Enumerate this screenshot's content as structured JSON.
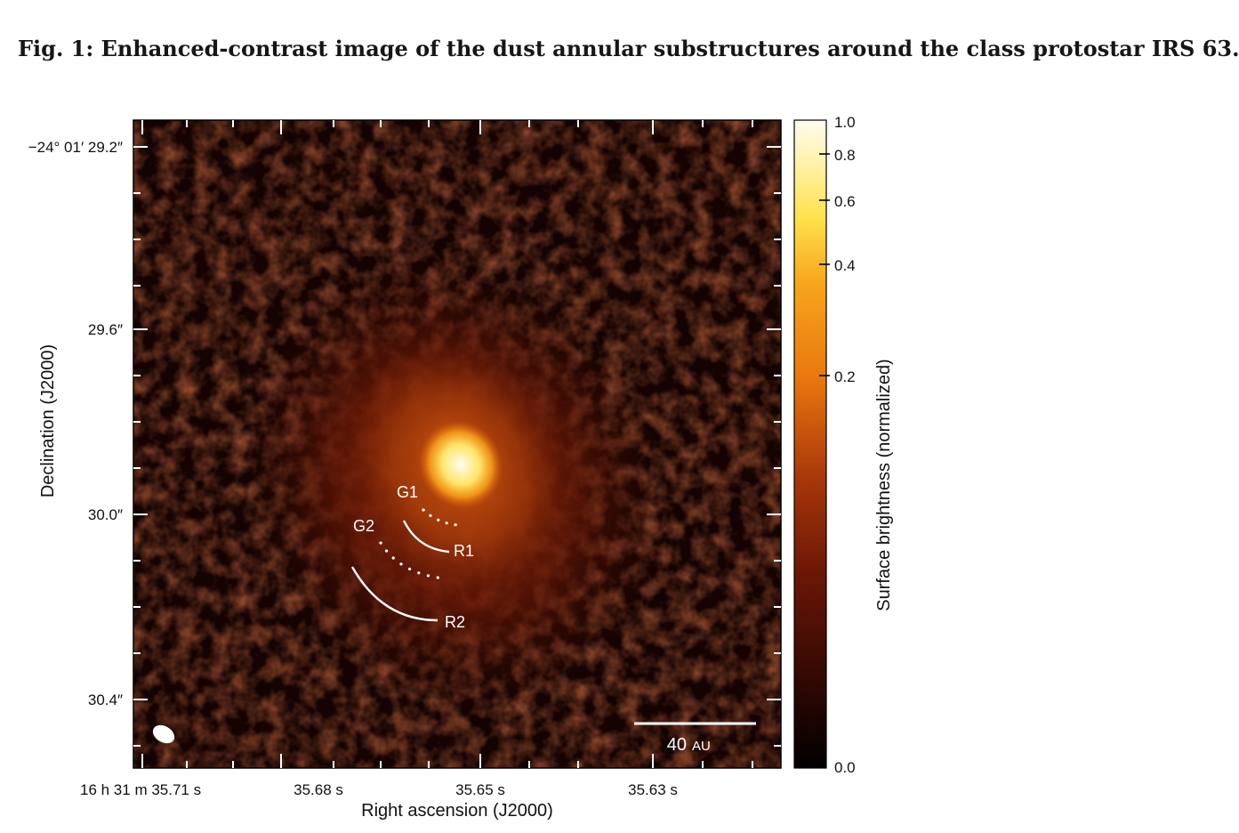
{
  "figure": {
    "caption": "Fig. 1: Enhanced-contrast image of the dust annular substructures around the class protostar IRS 63.",
    "x_axis_label": "Right ascension (J2000)",
    "y_axis_label": "Declination (J2000)",
    "colorbar_label": "Surface brightness (normalized)",
    "x_ticks": [
      "16 h 31 m 35.71 s",
      "35.68 s",
      "35.65 s",
      "35.63 s"
    ],
    "y_ticks": [
      "−24° 01′ 29.2″",
      "29.6″",
      "30.0″",
      "30.4″"
    ],
    "colorbar_ticks": [
      "1.0",
      "0.8",
      "0.6",
      "0.4",
      "0.2",
      "0.0"
    ],
    "annotations": {
      "g1": "G1",
      "g2": "G2",
      "r1": "R1",
      "r2": "R2"
    },
    "scale_bar": {
      "value": "40",
      "unit": "AU"
    },
    "colors": {
      "colormap": [
        "#000000",
        "#3a0a04",
        "#7a1c07",
        "#c24a0c",
        "#f08a12",
        "#ffd23c",
        "#fffde8"
      ],
      "annotation": "#ffffff"
    },
    "icons": {
      "beam": "beam-ellipse-icon"
    }
  }
}
